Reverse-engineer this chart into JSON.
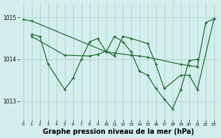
{
  "background_color": "#d4eeee",
  "grid_color": "#b0d4cc",
  "line_color": "#1a6b2a",
  "xlabel": "Graphe pression niveau de la mer (hPa)",
  "xlabel_fontsize": 7,
  "ylabel_ticks": [
    1013,
    1014,
    1015
  ],
  "xlim": [
    -0.5,
    23.5
  ],
  "ylim": [
    1012.55,
    1015.35
  ],
  "xticks": [
    0,
    1,
    2,
    3,
    4,
    5,
    6,
    7,
    8,
    9,
    10,
    11,
    12,
    13,
    14,
    15,
    16,
    17,
    18,
    19,
    20,
    21,
    22,
    23
  ],
  "series": [
    {
      "x": [
        0,
        1,
        10,
        11,
        13,
        14,
        15,
        19,
        20,
        21,
        22,
        23
      ],
      "y": [
        1014.95,
        1014.92,
        1014.18,
        1014.15,
        1014.1,
        1014.08,
        1014.05,
        1013.88,
        1013.85,
        1013.82,
        1014.88,
        1014.97
      ]
    },
    {
      "x": [
        1,
        2,
        3,
        5,
        6,
        7,
        8,
        9,
        10,
        11,
        12,
        13,
        14,
        15,
        16,
        17,
        18,
        19,
        20,
        21
      ],
      "y": [
        1014.6,
        1014.55,
        1013.88,
        1013.28,
        1013.55,
        1014.0,
        1014.42,
        1014.5,
        1014.18,
        1014.55,
        1014.42,
        1014.18,
        1013.72,
        1013.62,
        1013.3,
        1013.05,
        1012.82,
        1013.28,
        1013.97,
        1014.0
      ]
    },
    {
      "x": [
        1,
        5,
        8,
        9,
        10,
        11,
        12,
        13,
        15,
        16,
        17,
        19,
        20,
        21,
        23
      ],
      "y": [
        1014.55,
        1014.1,
        1014.08,
        1014.12,
        1014.2,
        1014.08,
        1014.55,
        1014.5,
        1014.38,
        1013.88,
        1013.3,
        1013.62,
        1013.62,
        1013.28,
        1014.97
      ]
    }
  ]
}
